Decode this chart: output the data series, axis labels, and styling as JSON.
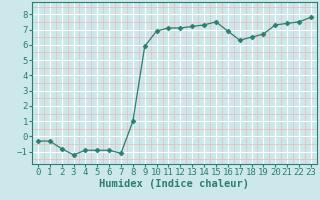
{
  "x": [
    0,
    1,
    2,
    3,
    4,
    5,
    6,
    7,
    8,
    9,
    10,
    11,
    12,
    13,
    14,
    15,
    16,
    17,
    18,
    19,
    20,
    21,
    22,
    23
  ],
  "y": [
    -0.3,
    -0.3,
    -0.8,
    -1.2,
    -0.9,
    -0.9,
    -0.9,
    -1.1,
    1.0,
    5.9,
    6.9,
    7.1,
    7.1,
    7.2,
    7.3,
    7.5,
    6.9,
    6.3,
    6.5,
    6.7,
    7.3,
    7.4,
    7.5,
    7.8
  ],
  "line_color": "#2e7d6e",
  "marker": "D",
  "marker_size": 2.5,
  "bg_color": "#cce8eb",
  "grid_major_color": "#ffffff",
  "grid_minor_color": "#e8b8b8",
  "xlabel": "Humidex (Indice chaleur)",
  "ylim": [
    -1.8,
    8.8
  ],
  "xlim": [
    -0.5,
    23.5
  ],
  "yticks": [
    -1,
    0,
    1,
    2,
    3,
    4,
    5,
    6,
    7,
    8
  ],
  "xticks": [
    0,
    1,
    2,
    3,
    4,
    5,
    6,
    7,
    8,
    9,
    10,
    11,
    12,
    13,
    14,
    15,
    16,
    17,
    18,
    19,
    20,
    21,
    22,
    23
  ],
  "xlabel_fontsize": 7.5,
  "tick_fontsize": 6.5
}
